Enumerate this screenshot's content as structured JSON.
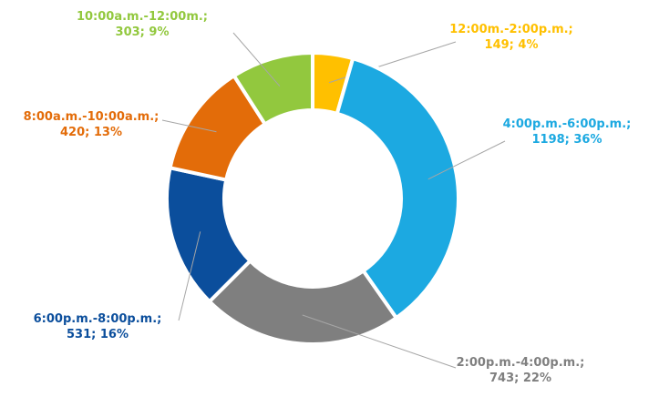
{
  "chart_data": {
    "type": "pie",
    "variant": "donut",
    "slices": [
      {
        "label": "12:00m.-2:00p.m.",
        "value": 149,
        "percent": "4%",
        "color": "#FFC000"
      },
      {
        "label": "4:00p.m.-6:00p.m.",
        "value": 1198,
        "percent": "36%",
        "color": "#1CA9E1"
      },
      {
        "label": "2:00p.m.-4:00p.m.",
        "value": 743,
        "percent": "22%",
        "color": "#7F7F7F"
      },
      {
        "label": "6:00p.m.-8:00p.m.",
        "value": 531,
        "percent": "16%",
        "color": "#0B4E9C"
      },
      {
        "label": "8:00a.m.-10:00a.m.",
        "value": 420,
        "percent": "13%",
        "color": "#E36C09"
      },
      {
        "label": "10:00a.m.-12:00m.",
        "value": 303,
        "percent": "9%",
        "color": "#92C83E"
      }
    ],
    "legend": "none",
    "data_labels": "outside-with-leader-lines"
  }
}
